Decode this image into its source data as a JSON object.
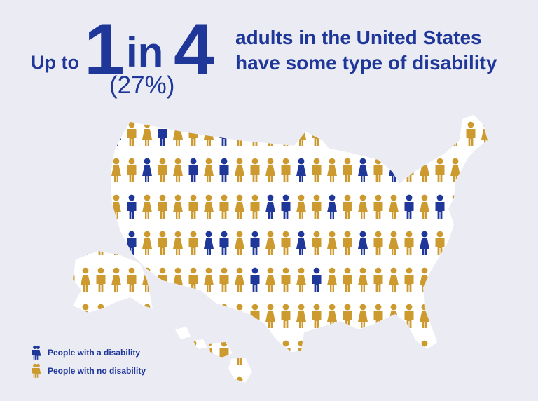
{
  "headline": {
    "prefix": "Up to",
    "numerator": "1",
    "connector": "in",
    "denominator": "4",
    "percent": "(27%)",
    "line1": "adults in the United States",
    "line2": "have some type of disability"
  },
  "legend": {
    "disability_label": "People with a disability",
    "no_disability_label": "People with no disability"
  },
  "colors": {
    "disability": "#1e3799",
    "no_disability": "#cc9a2e",
    "text": "#1e3799",
    "background": "#ebebf3",
    "map_fill": "#ffffff"
  },
  "stats": {
    "disability_share": 0.27
  }
}
